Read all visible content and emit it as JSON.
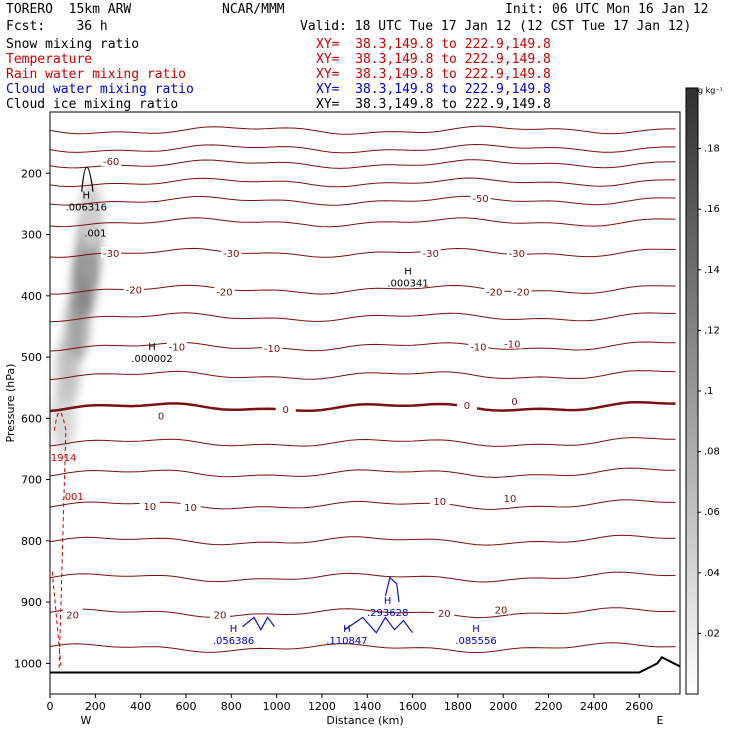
{
  "header": {
    "model": "TORERO  15km ARW",
    "org": "NCAR/MMM",
    "init": "Init: 06 UTC Mon 16 Jan 12",
    "fcst": "Fcst:    36 h",
    "valid": "Valid: 18 UTC Tue 17 Jan 12 (12 CST Tue 17 Jan 12)"
  },
  "fields": [
    {
      "name": "Snow mixing ratio",
      "xy": "XY=  38.3,149.8 to 222.9,149.8",
      "color": "#000000",
      "xy_color": "#cc0000"
    },
    {
      "name": "Temperature",
      "xy": "XY=  38.3,149.8 to 222.9,149.8",
      "color": "#cc0000",
      "xy_color": "#cc0000"
    },
    {
      "name": "Rain water mixing ratio",
      "xy": "XY=  38.3,149.8 to 222.9,149.8",
      "color": "#cc0000",
      "xy_color": "#cc0000"
    },
    {
      "name": "Cloud water mixing ratio",
      "xy": "XY=  38.3,149.8 to 222.9,149.8",
      "color": "#0000cc",
      "xy_color": "#0000cc"
    },
    {
      "name": "Cloud ice mixing ratio",
      "xy": "XY=  38.3,149.8 to 222.9,149.8",
      "color": "#000000",
      "xy_color": "#000000"
    }
  ],
  "chart_data": {
    "type": "heatmap",
    "title": "",
    "xlabel": "Distance (km)",
    "ylabel": "Pressure (hPa)",
    "xlim": [
      0,
      2780
    ],
    "ylim": [
      1050,
      100
    ],
    "x_ticks": [
      0,
      200,
      400,
      600,
      800,
      1000,
      1200,
      1400,
      1600,
      1800,
      2000,
      2200,
      2400,
      2600
    ],
    "y_ticks": [
      200,
      300,
      400,
      500,
      600,
      700,
      800,
      900,
      1000
    ],
    "x_end_labels": {
      "left": "W",
      "right": "E"
    },
    "colorbar": {
      "unit": "g kg⁻¹",
      "ticks": [
        ".02",
        ".04",
        ".06",
        ".08",
        ".1",
        ".12",
        ".14",
        ".16",
        ".18"
      ],
      "min": 0,
      "max": 0.2
    },
    "temperature_isotherms": [
      {
        "label": "-60",
        "label_x": 270,
        "p": 180
      },
      {
        "label": "-50",
        "label_x": 1900,
        "p": 240
      },
      {
        "label": "-30",
        "label_x": 270,
        "p": 330
      },
      {
        "label": "-30",
        "label_x": 800,
        "p": 330
      },
      {
        "label": "-30",
        "label_x": 1680,
        "p": 330
      },
      {
        "label": "-30",
        "label_x": 2060,
        "p": 330
      },
      {
        "label": "-20",
        "label_x": 370,
        "p": 390
      },
      {
        "label": "-20",
        "label_x": 770,
        "p": 393
      },
      {
        "label": "-20",
        "label_x": 1960,
        "p": 393
      },
      {
        "label": "-20",
        "label_x": 2080,
        "p": 393
      },
      {
        "label": "-10",
        "label_x": 560,
        "p": 483
      },
      {
        "label": "-10",
        "label_x": 980,
        "p": 485
      },
      {
        "label": "-10",
        "label_x": 1890,
        "p": 483
      },
      {
        "label": "-10",
        "label_x": 2040,
        "p": 478
      },
      {
        "label": "0",
        "label_x": 490,
        "p": 595
      },
      {
        "label": "0",
        "label_x": 1040,
        "p": 585
      },
      {
        "label": "0",
        "label_x": 1840,
        "p": 578
      },
      {
        "label": "0",
        "label_x": 2050,
        "p": 572
      },
      {
        "label": "10",
        "label_x": 440,
        "p": 743
      },
      {
        "label": "10",
        "label_x": 620,
        "p": 745
      },
      {
        "label": "10",
        "label_x": 1720,
        "p": 735
      },
      {
        "label": "10",
        "label_x": 2030,
        "p": 730
      },
      {
        "label": "20",
        "label_x": 100,
        "p": 920
      },
      {
        "label": "20",
        "label_x": 750,
        "p": 920
      },
      {
        "label": "20",
        "label_x": 1740,
        "p": 918
      },
      {
        "label": "20",
        "label_x": 1990,
        "p": 912
      }
    ],
    "extrema_labels": [
      {
        "text": "H",
        "value": ".006316",
        "x": 160,
        "p": 248,
        "color": "#000000"
      },
      {
        "text": "",
        "value": ".001",
        "x": 200,
        "p": 290,
        "color": "#000000"
      },
      {
        "text": "H",
        "value": ".000341",
        "x": 1580,
        "p": 372,
        "color": "#000000"
      },
      {
        "text": "H",
        "value": ".000002",
        "x": 450,
        "p": 495,
        "color": "#000000"
      },
      {
        "text": "",
        "value": "1914",
        "x": 60,
        "p": 657,
        "color": "#cc0000"
      },
      {
        "text": "",
        "value": ".001",
        "x": 100,
        "p": 720,
        "color": "#cc0000"
      },
      {
        "text": "H",
        "value": ".293628",
        "x": 1490,
        "p": 910,
        "color": "#0000cc"
      },
      {
        "text": "H",
        "value": ".056386",
        "x": 810,
        "p": 955,
        "color": "#0000cc"
      },
      {
        "text": "H",
        "value": ".110847",
        "x": 1310,
        "p": 955,
        "color": "#0000cc"
      },
      {
        "text": "H",
        "value": ".085556",
        "x": 1880,
        "p": 955,
        "color": "#0000cc"
      }
    ],
    "snow_plume": [
      {
        "p": 600,
        "x": 60,
        "v": 0.04
      },
      {
        "p": 520,
        "x": 80,
        "v": 0.06
      },
      {
        "p": 450,
        "x": 120,
        "v": 0.09
      },
      {
        "p": 380,
        "x": 150,
        "v": 0.12
      },
      {
        "p": 330,
        "x": 170,
        "v": 0.1
      },
      {
        "p": 270,
        "x": 180,
        "v": 0.05
      }
    ]
  }
}
